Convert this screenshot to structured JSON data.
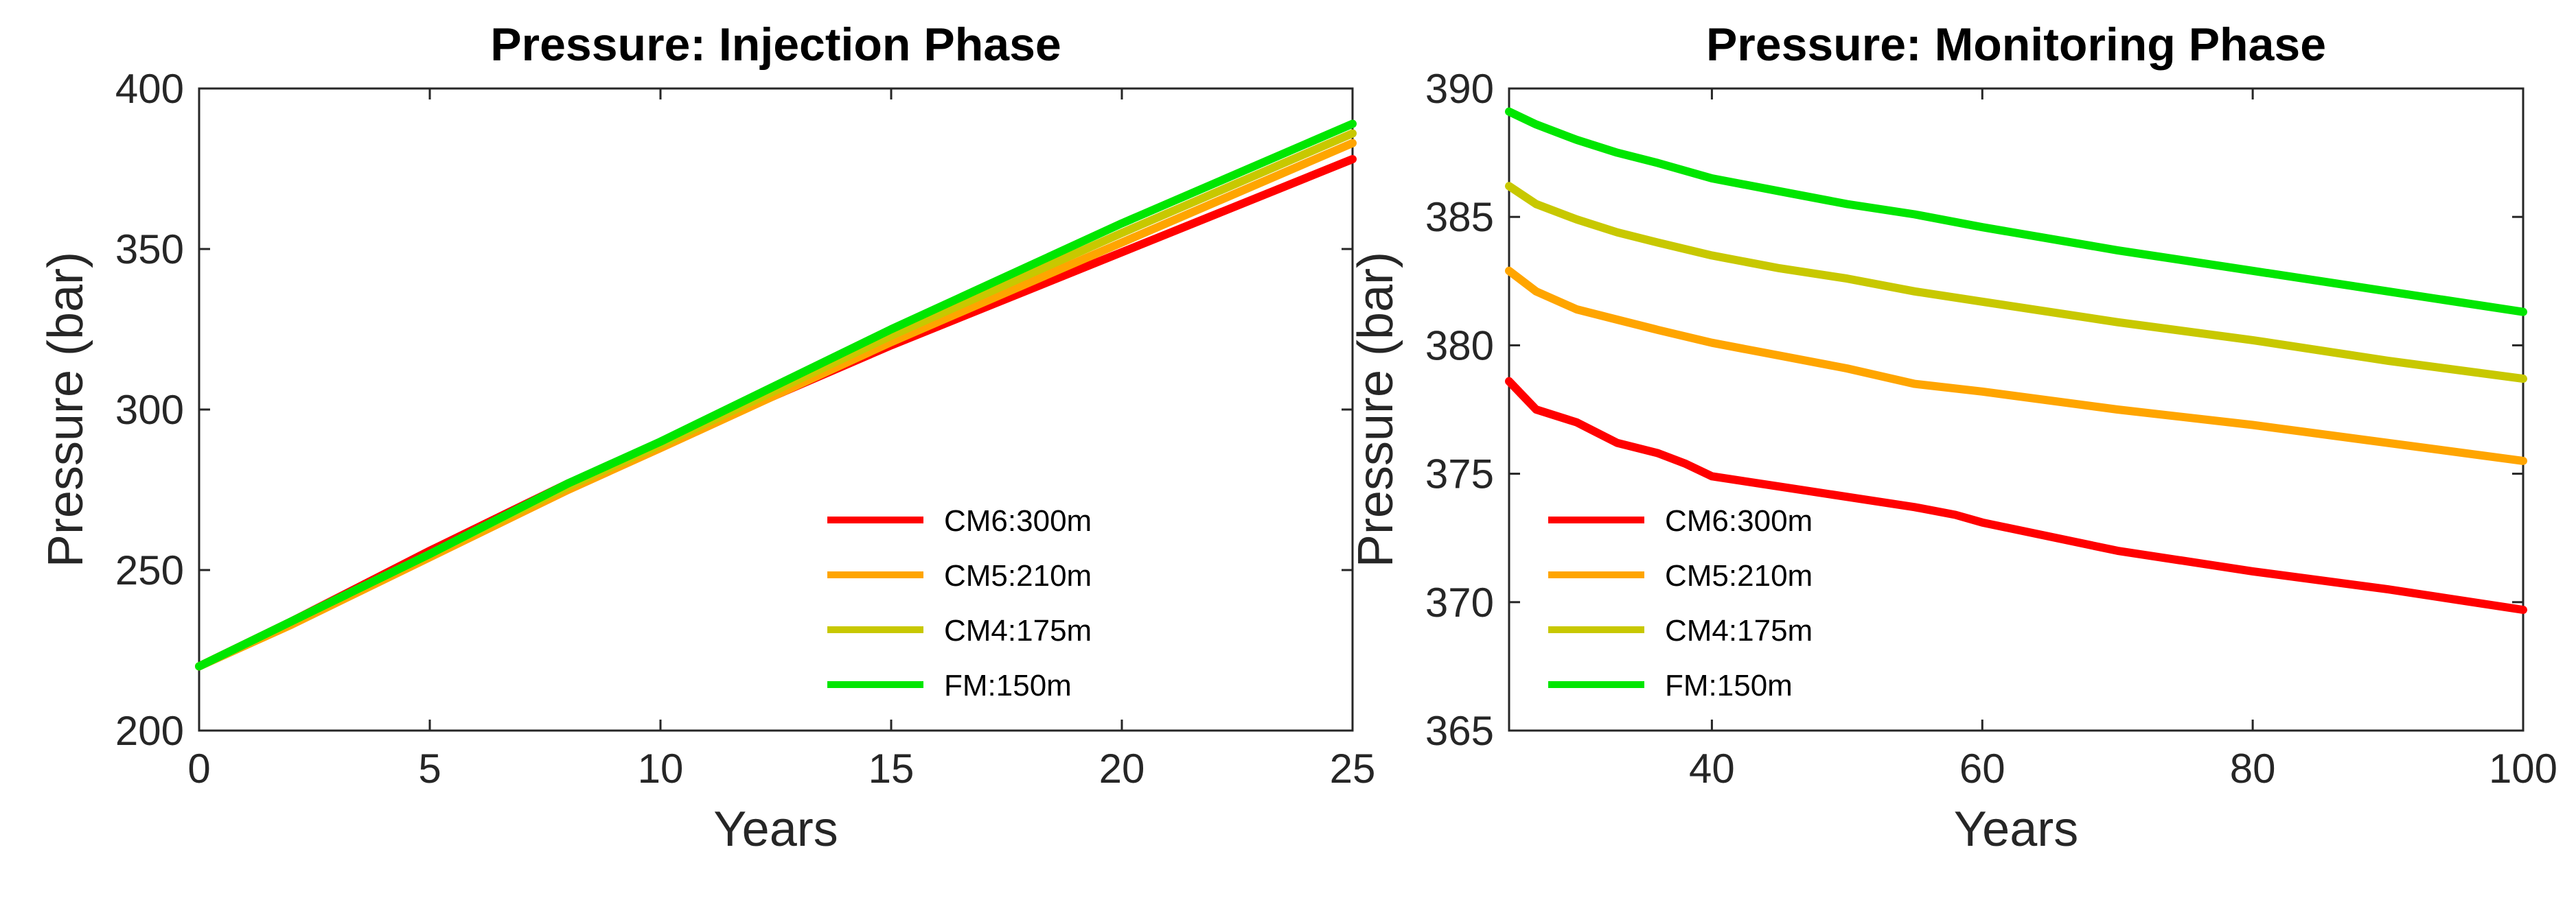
{
  "chart_data": [
    {
      "type": "line",
      "title": "Pressure: Injection Phase",
      "xlabel": "Years",
      "ylabel": "Pressure (bar)",
      "xlim": [
        0,
        25
      ],
      "ylim": [
        200,
        400
      ],
      "xticks": [
        0,
        5,
        10,
        15,
        20,
        25
      ],
      "yticks": [
        200,
        250,
        300,
        350,
        400
      ],
      "grid": false,
      "legend_position": "bottom-right",
      "series": [
        {
          "name": "CM6:300m",
          "color": "#ff0000",
          "x": [
            0,
            2,
            5,
            8,
            10,
            15,
            20,
            25
          ],
          "y": [
            220,
            234,
            256,
            277,
            289,
            320,
            349,
            378
          ]
        },
        {
          "name": "CM5:210m",
          "color": "#ffa500",
          "x": [
            0,
            2,
            5,
            8,
            10,
            15,
            20,
            25
          ],
          "y": [
            220,
            233,
            254,
            275,
            288,
            321,
            352,
            383
          ]
        },
        {
          "name": "CM4:175m",
          "color": "#c8c800",
          "x": [
            0,
            2,
            5,
            8,
            10,
            15,
            20,
            25
          ],
          "y": [
            220,
            234,
            255,
            276,
            289,
            323,
            355,
            386
          ]
        },
        {
          "name": "FM:150m",
          "color": "#00e600",
          "x": [
            0,
            2,
            5,
            8,
            10,
            15,
            20,
            25
          ],
          "y": [
            220,
            234,
            255,
            277,
            290,
            325,
            358,
            389
          ]
        }
      ]
    },
    {
      "type": "line",
      "title": "Pressure: Monitoring Phase",
      "xlabel": "Years",
      "ylabel": "Pressure (bar)",
      "xlim": [
        25,
        100
      ],
      "ylim": [
        365,
        390
      ],
      "xticks": [
        40,
        60,
        80,
        100
      ],
      "yticks": [
        365,
        370,
        375,
        380,
        385,
        390
      ],
      "grid": false,
      "legend_position": "bottom-left",
      "series": [
        {
          "name": "CM6:300m",
          "color": "#ff0000",
          "x": [
            25,
            27,
            30,
            33,
            36,
            38,
            40,
            45,
            50,
            55,
            58,
            60,
            70,
            80,
            90,
            100
          ],
          "y": [
            378.6,
            377.5,
            377.0,
            376.2,
            375.8,
            375.4,
            374.9,
            374.5,
            374.1,
            373.7,
            373.4,
            373.1,
            372.0,
            371.2,
            370.5,
            369.7
          ]
        },
        {
          "name": "CM5:210m",
          "color": "#ffa500",
          "x": [
            25,
            27,
            30,
            33,
            36,
            40,
            45,
            50,
            55,
            60,
            70,
            80,
            90,
            100
          ],
          "y": [
            382.9,
            382.1,
            381.4,
            381.0,
            380.6,
            380.1,
            379.6,
            379.1,
            378.5,
            378.2,
            377.5,
            376.9,
            376.2,
            375.5
          ]
        },
        {
          "name": "CM4:175m",
          "color": "#c8c800",
          "x": [
            25,
            27,
            30,
            33,
            36,
            40,
            45,
            50,
            55,
            60,
            70,
            80,
            90,
            100
          ],
          "y": [
            386.2,
            385.5,
            384.9,
            384.4,
            384.0,
            383.5,
            383.0,
            382.6,
            382.1,
            381.7,
            380.9,
            380.2,
            379.4,
            378.7
          ]
        },
        {
          "name": "FM:150m",
          "color": "#00e600",
          "x": [
            25,
            27,
            30,
            33,
            36,
            40,
            45,
            50,
            55,
            60,
            70,
            80,
            90,
            100
          ],
          "y": [
            389.1,
            388.6,
            388.0,
            387.5,
            387.1,
            386.5,
            386.0,
            385.5,
            385.1,
            384.6,
            383.7,
            382.9,
            382.1,
            381.3
          ]
        }
      ]
    }
  ]
}
